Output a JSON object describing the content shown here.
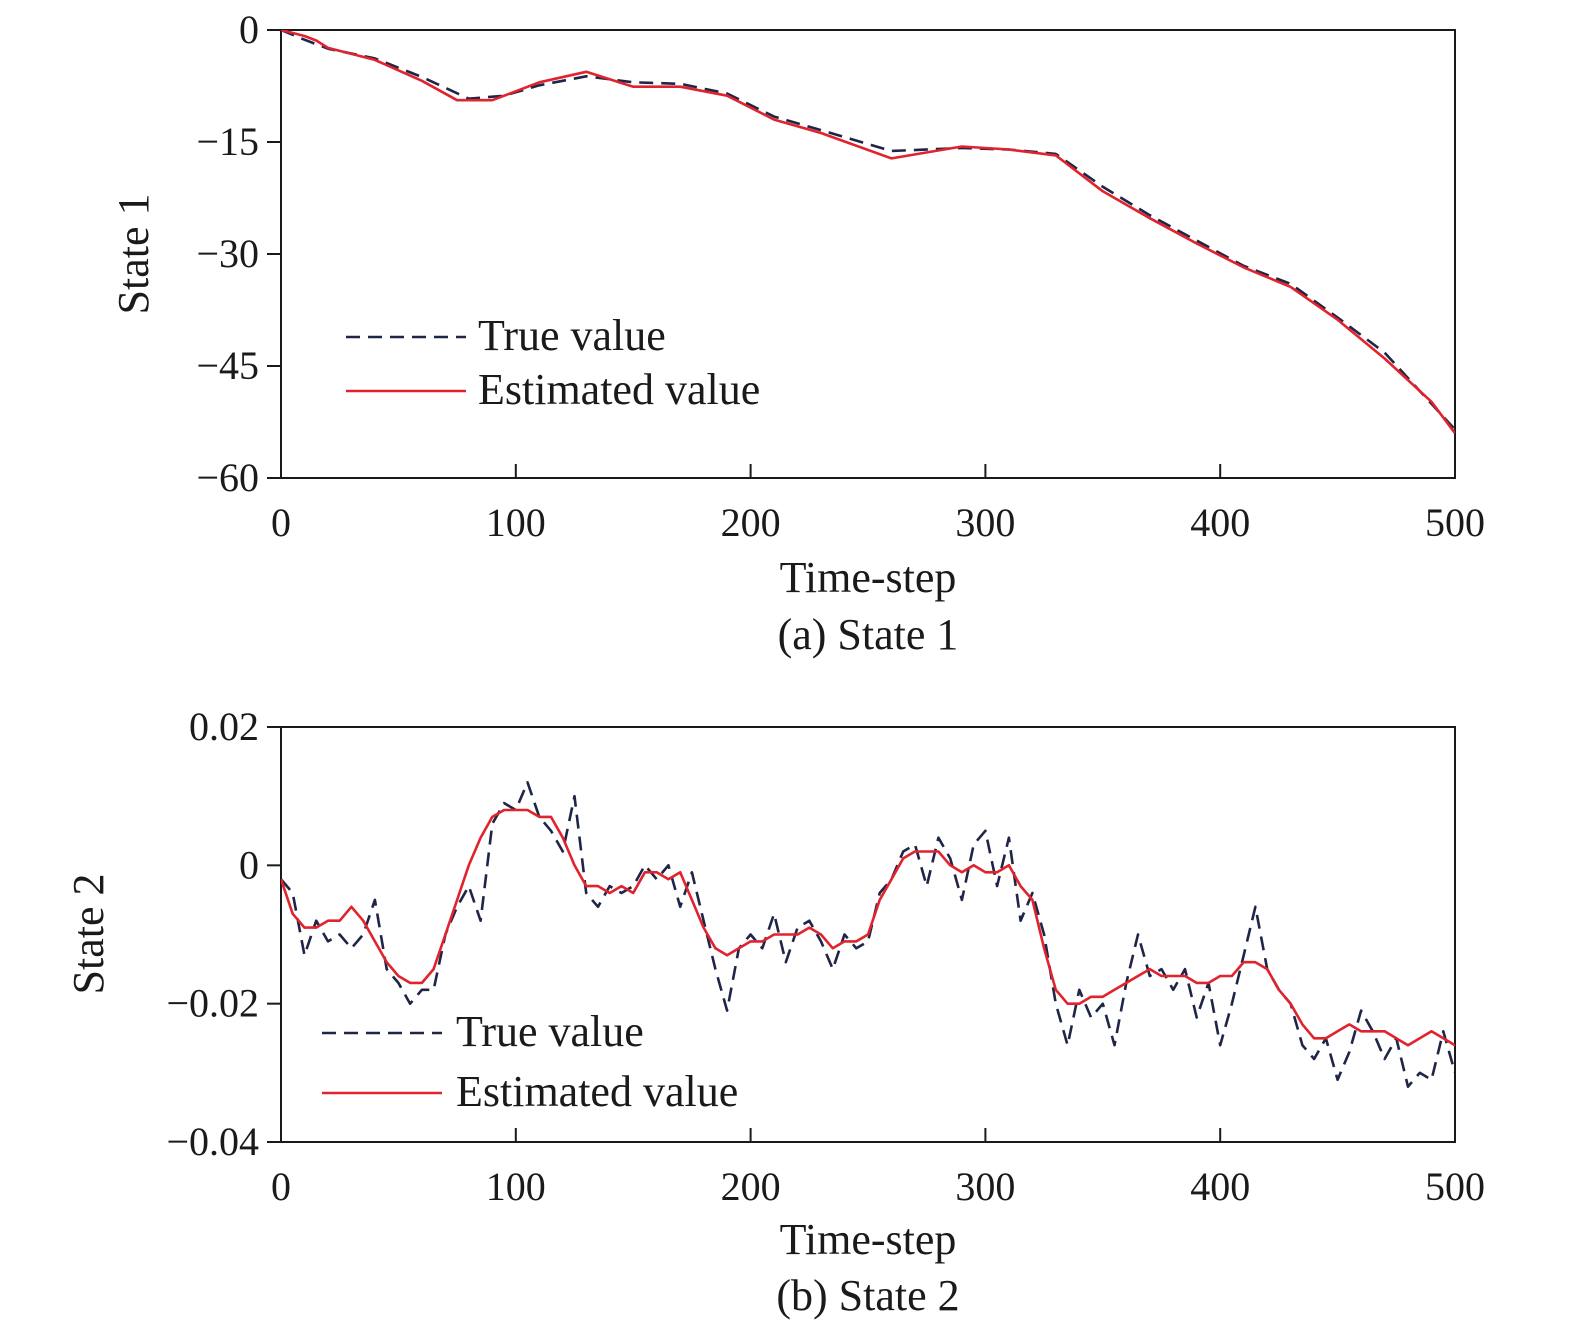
{
  "chart_data": [
    {
      "type": "line",
      "caption": "(a) State 1",
      "xlabel": "Time-step",
      "ylabel": "State 1",
      "xlim": [
        0,
        500
      ],
      "ylim": [
        -60,
        0
      ],
      "xticks": [
        0,
        100,
        200,
        300,
        400,
        500
      ],
      "xtick_labels": [
        "0",
        "100",
        "200",
        "300",
        "400",
        "500"
      ],
      "yticks": [
        0,
        -15,
        -30,
        -45,
        -60
      ],
      "ytick_labels": [
        "0",
        "−15",
        "−30",
        "−45",
        "−60"
      ],
      "legend_placement": "lower-left",
      "series": [
        {
          "name": "True value",
          "color": "#1f2547",
          "style": "dashed",
          "x": [
            0,
            10,
            20,
            40,
            60,
            80,
            95,
            110,
            130,
            150,
            170,
            190,
            210,
            230,
            260,
            290,
            310,
            330,
            350,
            370,
            390,
            410,
            430,
            450,
            470,
            500
          ],
          "y": [
            0,
            -1.3,
            -2.5,
            -3.8,
            -6.3,
            -9.2,
            -8.8,
            -7.4,
            -6.2,
            -7.0,
            -7.2,
            -8.5,
            -11.6,
            -13.4,
            -16.2,
            -15.8,
            -16.0,
            -16.6,
            -21.0,
            -24.8,
            -28.2,
            -31.6,
            -34.0,
            -38.5,
            -43.2,
            -53.5
          ]
        },
        {
          "name": "Estimated value",
          "color": "#e0232d",
          "style": "solid",
          "x": [
            0,
            5,
            10,
            15,
            20,
            40,
            60,
            75,
            90,
            110,
            130,
            150,
            170,
            190,
            210,
            230,
            260,
            290,
            310,
            330,
            350,
            370,
            390,
            410,
            430,
            450,
            470,
            490,
            500
          ],
          "y": [
            0,
            -0.4,
            -0.8,
            -1.4,
            -2.4,
            -4.0,
            -6.8,
            -9.4,
            -9.4,
            -7.0,
            -5.6,
            -7.6,
            -7.6,
            -8.8,
            -12.0,
            -13.8,
            -17.2,
            -15.6,
            -16.0,
            -16.8,
            -21.6,
            -25.2,
            -28.6,
            -31.8,
            -34.4,
            -38.8,
            -44.0,
            -49.8,
            -54.0
          ]
        }
      ]
    },
    {
      "type": "line",
      "caption": "(b) State 2",
      "xlabel": "Time-step",
      "ylabel": "State 2",
      "xlim": [
        0,
        500
      ],
      "ylim": [
        -0.04,
        0.02
      ],
      "xticks": [
        0,
        100,
        200,
        300,
        400,
        500
      ],
      "xtick_labels": [
        "0",
        "100",
        "200",
        "300",
        "400",
        "500"
      ],
      "yticks": [
        0.02,
        0,
        -0.02,
        -0.04
      ],
      "ytick_labels": [
        "0.02",
        "0",
        "−0.02",
        "−0.04"
      ],
      "legend_placement": "lower-left",
      "series": [
        {
          "name": "True value",
          "color": "#1f2547",
          "style": "dashed",
          "x": [
            0,
            5,
            10,
            15,
            20,
            25,
            30,
            35,
            40,
            45,
            50,
            55,
            60,
            65,
            70,
            75,
            80,
            85,
            90,
            95,
            100,
            105,
            110,
            115,
            120,
            125,
            130,
            135,
            140,
            145,
            150,
            155,
            160,
            165,
            170,
            175,
            180,
            185,
            190,
            195,
            200,
            205,
            210,
            215,
            220,
            225,
            230,
            235,
            240,
            245,
            250,
            255,
            260,
            265,
            270,
            275,
            280,
            285,
            290,
            295,
            300,
            305,
            310,
            315,
            320,
            325,
            330,
            335,
            340,
            345,
            350,
            355,
            360,
            365,
            370,
            375,
            380,
            385,
            390,
            395,
            400,
            405,
            410,
            415,
            420,
            425,
            430,
            435,
            440,
            445,
            450,
            455,
            460,
            465,
            470,
            475,
            480,
            485,
            490,
            495,
            500
          ],
          "y": [
            -0.002,
            -0.004,
            -0.013,
            -0.008,
            -0.011,
            -0.01,
            -0.012,
            -0.01,
            -0.005,
            -0.015,
            -0.017,
            -0.02,
            -0.018,
            -0.018,
            -0.01,
            -0.006,
            -0.003,
            -0.008,
            0.006,
            0.009,
            0.008,
            0.012,
            0.007,
            0.005,
            0.002,
            0.01,
            -0.004,
            -0.006,
            -0.003,
            -0.004,
            -0.003,
            0.0,
            -0.002,
            0.0,
            -0.006,
            -0.001,
            -0.008,
            -0.015,
            -0.021,
            -0.012,
            -0.01,
            -0.012,
            -0.007,
            -0.014,
            -0.009,
            -0.008,
            -0.011,
            -0.015,
            -0.01,
            -0.012,
            -0.011,
            -0.004,
            -0.002,
            0.002,
            0.003,
            -0.003,
            0.004,
            0.001,
            -0.005,
            0.003,
            0.005,
            -0.003,
            0.004,
            -0.008,
            -0.004,
            -0.01,
            -0.02,
            -0.026,
            -0.018,
            -0.022,
            -0.02,
            -0.026,
            -0.017,
            -0.01,
            -0.016,
            -0.015,
            -0.018,
            -0.015,
            -0.022,
            -0.017,
            -0.026,
            -0.02,
            -0.013,
            -0.006,
            -0.015,
            -0.018,
            -0.02,
            -0.026,
            -0.028,
            -0.025,
            -0.031,
            -0.027,
            -0.021,
            -0.024,
            -0.028,
            -0.025,
            -0.032,
            -0.03,
            -0.031,
            -0.024,
            -0.03
          ]
        },
        {
          "name": "Estimated value",
          "color": "#e0232d",
          "style": "solid",
          "x": [
            0,
            5,
            10,
            15,
            20,
            25,
            30,
            35,
            40,
            45,
            50,
            55,
            60,
            65,
            70,
            75,
            80,
            85,
            90,
            95,
            100,
            105,
            110,
            115,
            120,
            125,
            130,
            135,
            140,
            145,
            150,
            155,
            160,
            165,
            170,
            175,
            180,
            185,
            190,
            195,
            200,
            205,
            210,
            215,
            220,
            225,
            230,
            235,
            240,
            245,
            250,
            255,
            260,
            265,
            270,
            275,
            280,
            285,
            290,
            295,
            300,
            305,
            310,
            315,
            320,
            325,
            330,
            335,
            340,
            345,
            350,
            355,
            360,
            365,
            370,
            375,
            380,
            385,
            390,
            395,
            400,
            405,
            410,
            415,
            420,
            425,
            430,
            435,
            440,
            445,
            450,
            455,
            460,
            465,
            470,
            475,
            480,
            485,
            490,
            495,
            500
          ],
          "y": [
            -0.002,
            -0.007,
            -0.009,
            -0.009,
            -0.008,
            -0.008,
            -0.006,
            -0.008,
            -0.011,
            -0.014,
            -0.016,
            -0.017,
            -0.017,
            -0.015,
            -0.01,
            -0.005,
            0.0,
            0.004,
            0.007,
            0.008,
            0.008,
            0.008,
            0.007,
            0.007,
            0.004,
            0.0,
            -0.003,
            -0.003,
            -0.004,
            -0.003,
            -0.004,
            -0.001,
            -0.001,
            -0.002,
            -0.001,
            -0.005,
            -0.009,
            -0.012,
            -0.013,
            -0.012,
            -0.011,
            -0.011,
            -0.01,
            -0.01,
            -0.01,
            -0.009,
            -0.01,
            -0.012,
            -0.011,
            -0.011,
            -0.01,
            -0.005,
            -0.002,
            0.001,
            0.002,
            0.002,
            0.002,
            0.0,
            -0.001,
            0.0,
            -0.001,
            -0.001,
            0.0,
            -0.003,
            -0.005,
            -0.012,
            -0.018,
            -0.02,
            -0.02,
            -0.019,
            -0.019,
            -0.018,
            -0.017,
            -0.016,
            -0.015,
            -0.016,
            -0.016,
            -0.016,
            -0.017,
            -0.017,
            -0.016,
            -0.016,
            -0.014,
            -0.014,
            -0.015,
            -0.018,
            -0.02,
            -0.023,
            -0.025,
            -0.025,
            -0.024,
            -0.023,
            -0.024,
            -0.024,
            -0.024,
            -0.025,
            -0.026,
            -0.025,
            -0.024,
            -0.025,
            -0.026
          ]
        }
      ]
    }
  ]
}
